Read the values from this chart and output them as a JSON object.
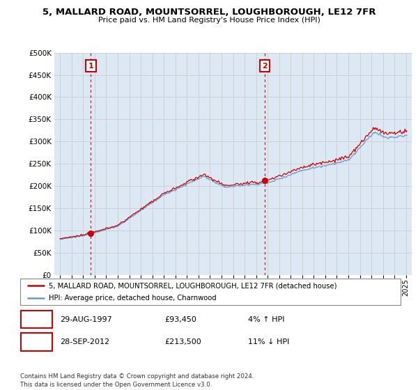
{
  "title_line1": "5, MALLARD ROAD, MOUNTSORREL, LOUGHBOROUGH, LE12 7FR",
  "title_line2": "Price paid vs. HM Land Registry's House Price Index (HPI)",
  "ylim": [
    0,
    500000
  ],
  "yticks": [
    0,
    50000,
    100000,
    150000,
    200000,
    250000,
    300000,
    350000,
    400000,
    450000,
    500000
  ],
  "ytick_labels": [
    "£0",
    "£50K",
    "£100K",
    "£150K",
    "£200K",
    "£250K",
    "£300K",
    "£350K",
    "£400K",
    "£450K",
    "£500K"
  ],
  "sale1_date": 1997.66,
  "sale1_price": 93450,
  "sale1_label": "1",
  "sale2_date": 2012.75,
  "sale2_price": 213500,
  "sale2_label": "2",
  "sale_color": "#cc0000",
  "hpi_color": "#6699cc",
  "vline_color": "#cc0000",
  "grid_color": "#cccccc",
  "bg_color": "#dce9f5",
  "fig_bg": "#ffffff",
  "legend_line1": "5, MALLARD ROAD, MOUNTSORREL, LOUGHBOROUGH, LE12 7FR (detached house)",
  "legend_line2": "HPI: Average price, detached house, Charnwood",
  "ann1_date": "29-AUG-1997",
  "ann1_price": "£93,450",
  "ann1_pct": "4% ↑ HPI",
  "ann2_date": "28-SEP-2012",
  "ann2_price": "£213,500",
  "ann2_pct": "11% ↓ HPI",
  "footer": "Contains HM Land Registry data © Crown copyright and database right 2024.\nThis data is licensed under the Open Government Licence v3.0.",
  "xlim_start": 1994.5,
  "xlim_end": 2025.5
}
